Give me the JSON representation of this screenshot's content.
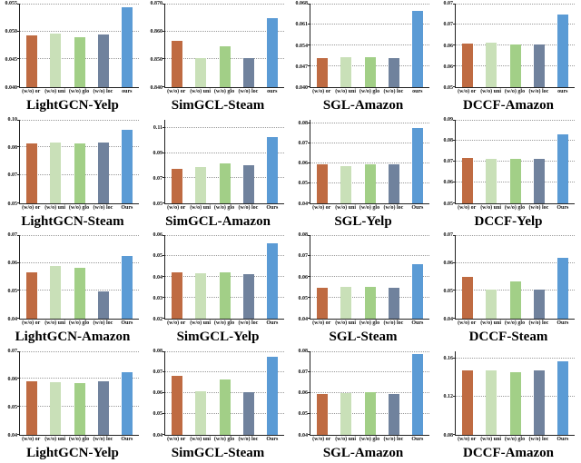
{
  "style": {
    "bar_colors": [
      "#bf6b42",
      "#c9e0b8",
      "#a2cf87",
      "#70829d",
      "#5b9bd5"
    ],
    "axis_color": "#222222",
    "grid_color": "#9a9a9a"
  },
  "chart_data": [
    {
      "type": "bar",
      "title": "LightGCN-Yelp",
      "categories": [
        "(w/o) or",
        "(w/o) uni",
        "(w/o) glo",
        "(w/o) loc",
        "ours"
      ],
      "values": [
        0.0493,
        0.0496,
        0.0489,
        0.0494,
        0.0543
      ],
      "ylim": [
        0.04,
        0.055
      ],
      "yticks": [
        {
          "value": 0.04,
          "label": "0.040"
        },
        {
          "value": 0.045,
          "label": "0.045"
        },
        {
          "value": 0.05,
          "label": "0.050"
        },
        {
          "value": 0.055,
          "label": "0.055"
        }
      ],
      "grid": "horizontal-dotted",
      "legend": "none"
    },
    {
      "type": "bar",
      "title": "SimGCL-Steam",
      "categories": [
        "(w/o) or",
        "(w/o) uni",
        "(w/o) glo",
        "(w/o) loc",
        "ours"
      ],
      "values": [
        0.8567,
        0.8503,
        0.8547,
        0.8503,
        0.8647
      ],
      "ylim": [
        0.84,
        0.87
      ],
      "yticks": [
        {
          "value": 0.84,
          "label": "0.840"
        },
        {
          "value": 0.85,
          "label": "0.850"
        },
        {
          "value": 0.86,
          "label": "0.860"
        },
        {
          "value": 0.87,
          "label": "0.870"
        }
      ],
      "grid": "horizontal-dotted",
      "legend": "none"
    },
    {
      "type": "bar",
      "title": "SGL-Amazon",
      "categories": [
        "(w/o) or",
        "(w/o) uni",
        "(w/o) glo",
        "(w/o) loc",
        "ours"
      ],
      "values": [
        0.0496,
        0.05,
        0.0502,
        0.0498,
        0.0655
      ],
      "ylim": [
        0.04,
        0.068
      ],
      "yticks": [
        {
          "value": 0.04,
          "label": "0.040"
        },
        {
          "value": 0.047,
          "label": "0.047"
        },
        {
          "value": 0.054,
          "label": "0.054"
        },
        {
          "value": 0.061,
          "label": "0.061"
        },
        {
          "value": 0.068,
          "label": "0.068"
        }
      ],
      "grid": "horizontal-dotted",
      "legend": "none"
    },
    {
      "type": "bar",
      "title": "DCCF-Amazon",
      "categories": [
        "(w/o) or",
        "(w/o) uni",
        "(w/o) glo",
        "(w/o) loc",
        "ours"
      ],
      "values": [
        0.0605,
        0.0607,
        0.0603,
        0.0603,
        0.0675
      ],
      "ylim": [
        0.05,
        0.07
      ],
      "yticks": [
        {
          "value": 0.05,
          "label": "0.05"
        },
        {
          "value": 0.055,
          "label": "0.06"
        },
        {
          "value": 0.06,
          "label": "0.06"
        },
        {
          "value": 0.065,
          "label": "0.07"
        },
        {
          "value": 0.07,
          "label": "0.07"
        }
      ],
      "grid": "horizontal-dotted",
      "legend": "none"
    },
    {
      "type": "bar",
      "title": "LightGCN-Steam",
      "categories": [
        "(w/o) or",
        "(w/o) uni",
        "(w/o) glo",
        "(w/o) loc",
        "Ours"
      ],
      "values": [
        0.0858,
        0.086,
        0.0858,
        0.0862,
        0.0937
      ],
      "ylim": [
        0.05,
        0.1
      ],
      "yticks": [
        {
          "value": 0.05,
          "label": "0.05"
        },
        {
          "value": 0.0667,
          "label": "0.07"
        },
        {
          "value": 0.0833,
          "label": "0.08"
        },
        {
          "value": 0.1,
          "label": "0.10"
        }
      ],
      "grid": "horizontal-dotted",
      "legend": "none"
    },
    {
      "type": "bar",
      "title": "SimGCL-Amazon",
      "categories": [
        "(w/o) or",
        "(w/o) uni",
        "(w/o) glo",
        "(w/o) loc",
        "Ours"
      ],
      "values": [
        0.0775,
        0.079,
        0.0815,
        0.08,
        0.1025
      ],
      "ylim": [
        0.05,
        0.117
      ],
      "yticks": [
        {
          "value": 0.05,
          "label": "0.05"
        },
        {
          "value": 0.07,
          "label": "0.07"
        },
        {
          "value": 0.09,
          "label": "0.09"
        },
        {
          "value": 0.11,
          "label": "0.11"
        }
      ],
      "grid": "horizontal-dotted",
      "legend": "none"
    },
    {
      "type": "bar",
      "title": "SGL-Yelp",
      "categories": [
        "(w/o) or",
        "(w/o) uni",
        "(w/o) glo",
        "(w/o) loc",
        "Ours"
      ],
      "values": [
        0.0596,
        0.0583,
        0.0596,
        0.0594,
        0.0775
      ],
      "ylim": [
        0.04,
        0.082
      ],
      "yticks": [
        {
          "value": 0.04,
          "label": "0.04"
        },
        {
          "value": 0.05,
          "label": "0.05"
        },
        {
          "value": 0.06,
          "label": "0.06"
        },
        {
          "value": 0.07,
          "label": "0.07"
        },
        {
          "value": 0.08,
          "label": "0.08"
        }
      ],
      "grid": "horizontal-dotted",
      "legend": "none"
    },
    {
      "type": "bar",
      "title": "DCCF-Yelp",
      "categories": [
        "(w/o) or",
        "(w/o) uni",
        "(w/o) glo",
        "(w/o) loc",
        "Ours"
      ],
      "values": [
        0.0716,
        0.0713,
        0.0713,
        0.071,
        0.0828
      ],
      "ylim": [
        0.05,
        0.09
      ],
      "yticks": [
        {
          "value": 0.05,
          "label": "0.05"
        },
        {
          "value": 0.06,
          "label": "0.06"
        },
        {
          "value": 0.07,
          "label": "0.07"
        },
        {
          "value": 0.08,
          "label": "0.08"
        },
        {
          "value": 0.09,
          "label": "0.09"
        }
      ],
      "grid": "horizontal-dotted",
      "legend": "none"
    },
    {
      "type": "bar",
      "title": "LightGCN-Amazon",
      "categories": [
        "(w/o) or",
        "(w/o) uni",
        "(w/o) glo",
        "(w/o) loc",
        "Ours"
      ],
      "values": [
        0.0565,
        0.0588,
        0.0582,
        0.0498,
        0.0625
      ],
      "ylim": [
        0.04,
        0.07
      ],
      "yticks": [
        {
          "value": 0.04,
          "label": "0.04"
        },
        {
          "value": 0.05,
          "label": "0.05"
        },
        {
          "value": 0.06,
          "label": "0.06"
        },
        {
          "value": 0.07,
          "label": "0.07"
        }
      ],
      "grid": "horizontal-dotted",
      "legend": "none"
    },
    {
      "type": "bar",
      "title": "SimGCL-Yelp",
      "categories": [
        "(w/o) or",
        "(w/o) uni",
        "(w/o) glo",
        "(w/o) loc",
        "Ours"
      ],
      "values": [
        0.042,
        0.0417,
        0.0421,
        0.0412,
        0.056
      ],
      "ylim": [
        0.02,
        0.06
      ],
      "yticks": [
        {
          "value": 0.02,
          "label": "0.02"
        },
        {
          "value": 0.03,
          "label": "0.03"
        },
        {
          "value": 0.04,
          "label": "0.04"
        },
        {
          "value": 0.05,
          "label": "0.05"
        },
        {
          "value": 0.06,
          "label": "0.06"
        }
      ],
      "grid": "horizontal-dotted",
      "legend": "none"
    },
    {
      "type": "bar",
      "title": "SGL-Steam",
      "categories": [
        "(w/o) or",
        "(w/o) uni",
        "(w/o) glo",
        "(w/o) loc",
        "Ours"
      ],
      "values": [
        0.055,
        0.0552,
        0.0553,
        0.055,
        0.066
      ],
      "ylim": [
        0.04,
        0.08
      ],
      "yticks": [
        {
          "value": 0.04,
          "label": "0.04"
        },
        {
          "value": 0.05,
          "label": "0.05"
        },
        {
          "value": 0.06,
          "label": "0.06"
        },
        {
          "value": 0.07,
          "label": "0.07"
        },
        {
          "value": 0.08,
          "label": "0.08"
        }
      ],
      "grid": "horizontal-dotted",
      "legend": "none"
    },
    {
      "type": "bar",
      "title": "DCCF-Steam",
      "categories": [
        "(w/o) or",
        "(w/o) uni",
        "(w/o) glo",
        "(w/o) loc",
        "Ours"
      ],
      "values": [
        0.055,
        0.0503,
        0.0535,
        0.0503,
        0.0618
      ],
      "ylim": [
        0.04,
        0.07
      ],
      "yticks": [
        {
          "value": 0.04,
          "label": "0.04"
        },
        {
          "value": 0.05,
          "label": "0.05"
        },
        {
          "value": 0.06,
          "label": "0.06"
        },
        {
          "value": 0.07,
          "label": "0.07"
        }
      ],
      "grid": "horizontal-dotted",
      "legend": "none"
    },
    {
      "type": "bar",
      "title": "LightGCN-Yelp",
      "categories": [
        "(w/o) or",
        "(w/o) uni",
        "(w/o) glo",
        "(w/o) loc",
        "Ours"
      ],
      "values": [
        0.059,
        0.0589,
        0.0585,
        0.059,
        0.0625
      ],
      "ylim": [
        0.04,
        0.07
      ],
      "yticks": [
        {
          "value": 0.04,
          "label": "0.04"
        },
        {
          "value": 0.05,
          "label": "0.05"
        },
        {
          "value": 0.06,
          "label": "0.06"
        },
        {
          "value": 0.07,
          "label": "0.07"
        }
      ],
      "grid": "horizontal-dotted",
      "legend": "none"
    },
    {
      "type": "bar",
      "title": "SimGCL-Steam",
      "categories": [
        "(w/o) or",
        "(w/o) uni",
        "(w/o) glo",
        "(w/o) loc",
        "Ours"
      ],
      "values": [
        0.068,
        0.0605,
        0.0665,
        0.0603,
        0.077
      ],
      "ylim": [
        0.04,
        0.08
      ],
      "yticks": [
        {
          "value": 0.04,
          "label": "0.04"
        },
        {
          "value": 0.05,
          "label": "0.05"
        },
        {
          "value": 0.06,
          "label": "0.06"
        },
        {
          "value": 0.07,
          "label": "0.07"
        },
        {
          "value": 0.08,
          "label": "0.08"
        }
      ],
      "grid": "horizontal-dotted",
      "legend": "none"
    },
    {
      "type": "bar",
      "title": "SGL-Amazon",
      "categories": [
        "(w/o) or",
        "(w/o) uni",
        "(w/o) glo",
        "(w/o) loc",
        "Ours"
      ],
      "values": [
        0.0593,
        0.0598,
        0.0602,
        0.0594,
        0.0786
      ],
      "ylim": [
        0.04,
        0.08
      ],
      "yticks": [
        {
          "value": 0.04,
          "label": "0.04"
        },
        {
          "value": 0.05,
          "label": "0.05"
        },
        {
          "value": 0.06,
          "label": "0.06"
        },
        {
          "value": 0.07,
          "label": "0.07"
        },
        {
          "value": 0.08,
          "label": "0.08"
        }
      ],
      "grid": "horizontal-dotted",
      "legend": "none"
    },
    {
      "type": "bar",
      "title": "DCCF-Amazon",
      "categories": [
        "(w/o) or",
        "(w/o) uni",
        "(w/o) glo",
        "(w/o) loc",
        "Ours"
      ],
      "values": [
        0.147,
        0.147,
        0.146,
        0.147,
        0.157
      ],
      "ylim": [
        0.08,
        0.168
      ],
      "yticks": [
        {
          "value": 0.08,
          "label": "0.08"
        },
        {
          "value": 0.12,
          "label": "0.12"
        },
        {
          "value": 0.16,
          "label": "0.16"
        }
      ],
      "grid": "horizontal-dotted",
      "legend": "none"
    }
  ]
}
